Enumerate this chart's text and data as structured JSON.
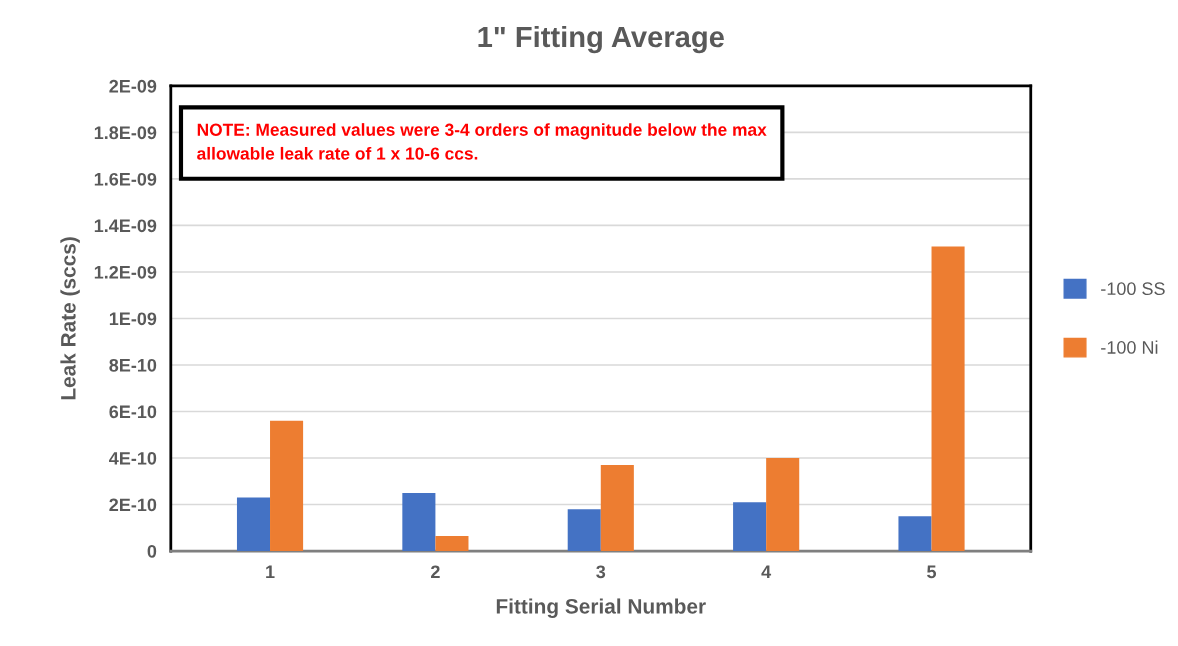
{
  "chart_data": {
    "type": "bar",
    "title": "1\" Fitting Average",
    "xlabel": "Fitting Serial Number",
    "ylabel": "Leak Rate (sccs)",
    "categories": [
      "1",
      "2",
      "3",
      "4",
      "5"
    ],
    "series": [
      {
        "name": "-100 SS",
        "color": "#4472c4",
        "values": [
          2.3e-10,
          2.5e-10,
          1.8e-10,
          2.1e-10,
          1.5e-10
        ]
      },
      {
        "name": "-100 Ni",
        "color": "#ed7d31",
        "values": [
          5.6e-10,
          6.5e-11,
          3.7e-10,
          4e-10,
          1.31e-09
        ]
      }
    ],
    "ylim": [
      0,
      2e-09
    ],
    "yticks": [
      {
        "value": 0,
        "label": "0"
      },
      {
        "value": 2e-10,
        "label": "2E-10"
      },
      {
        "value": 4e-10,
        "label": "4E-10"
      },
      {
        "value": 6e-10,
        "label": "6E-10"
      },
      {
        "value": 8e-10,
        "label": "8E-10"
      },
      {
        "value": 1e-09,
        "label": "1E-09"
      },
      {
        "value": 1.2e-09,
        "label": "1.2E-09"
      },
      {
        "value": 1.4e-09,
        "label": "1.4E-09"
      },
      {
        "value": 1.6e-09,
        "label": "1.6E-09"
      },
      {
        "value": 1.8e-09,
        "label": "1.8E-09"
      },
      {
        "value": 2e-09,
        "label": "2E-09"
      }
    ],
    "grid": "y",
    "legend": "right",
    "annotations": [
      "NOTE: Measured values were 3-4 orders of magnitude below the max allowable leak rate of 1 x 10-6 ccs."
    ]
  }
}
